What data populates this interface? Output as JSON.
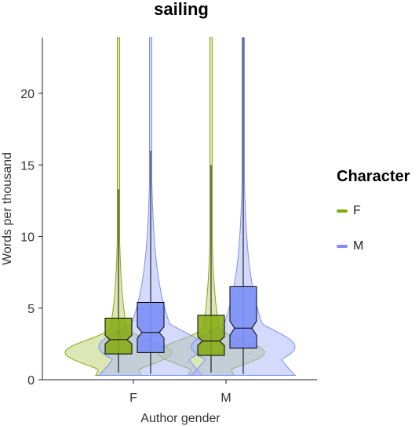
{
  "chart_data": {
    "type": "violin",
    "title": "sailing",
    "xlabel": "Author gender",
    "ylabel": "Words per thousand",
    "categories": [
      "F",
      "M"
    ],
    "ylim": [
      0,
      24
    ],
    "yticks": [
      0,
      5,
      10,
      15,
      20
    ],
    "grid": false,
    "legend": {
      "title": "Character",
      "position": "right",
      "entries": [
        {
          "name": "F",
          "color": "#86A90E"
        },
        {
          "name": "M",
          "color": "#7B8FF7"
        }
      ]
    },
    "series": [
      {
        "name": "F",
        "color": "#86A90E",
        "fill": "#BCCF6E",
        "box": [
          {
            "category": "F",
            "q1": 1.8,
            "median": 2.8,
            "q3": 4.3,
            "notch_low": 2.5,
            "notch_high": 3.1,
            "whisker_low": 0.5,
            "whisker_high": 13.3
          },
          {
            "category": "M",
            "q1": 1.7,
            "median": 2.7,
            "q3": 4.5,
            "notch_low": 2.4,
            "notch_high": 3.0,
            "whisker_low": 0.5,
            "whisker_high": 15.0
          }
        ],
        "violin_max": 24
      },
      {
        "name": "M",
        "color": "#7B8FF7",
        "fill": "#A9B6F8",
        "box": [
          {
            "category": "F",
            "q1": 1.9,
            "median": 3.3,
            "q3": 5.4,
            "notch_low": 2.9,
            "notch_high": 3.7,
            "whisker_low": 0.4,
            "whisker_high": 16.0
          },
          {
            "category": "M",
            "q1": 2.2,
            "median": 3.6,
            "q3": 6.5,
            "notch_low": 3.1,
            "notch_high": 4.1,
            "whisker_low": 0.4,
            "whisker_high": 24.0
          }
        ],
        "violin_max": 24
      }
    ]
  }
}
